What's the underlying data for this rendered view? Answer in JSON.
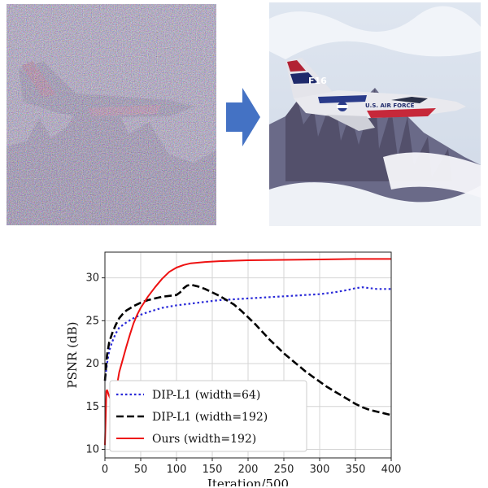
{
  "figure": {
    "left_image": {
      "name": "noisy-input-photo",
      "subject": "jet plane over snowy mountains"
    },
    "right_image": {
      "name": "restored-output-photo",
      "subject": "jet plane over snowy mountains"
    },
    "tail_text": "F16",
    "fuselage_text": "U.S. AIR FORCE",
    "arrow_color": "#4472c4"
  },
  "chart_data": {
    "type": "line",
    "xlabel": "Iteration/500",
    "ylabel": "PSNR (dB)",
    "xlim": [
      0,
      400
    ],
    "ylim": [
      9,
      33
    ],
    "xticks": [
      0,
      50,
      100,
      150,
      200,
      250,
      300,
      350,
      400
    ],
    "yticks": [
      10,
      15,
      20,
      25,
      30
    ],
    "grid": true,
    "legend_position": "lower-left",
    "series": [
      {
        "name": "DIP-L1 (width=64)",
        "color": "#2a2ad8",
        "style": "dotted",
        "x": [
          0,
          3,
          6,
          10,
          15,
          20,
          30,
          40,
          50,
          60,
          80,
          100,
          120,
          140,
          160,
          180,
          200,
          220,
          240,
          260,
          280,
          300,
          320,
          340,
          350,
          360,
          370,
          380,
          390,
          400
        ],
        "y": [
          18,
          20,
          21.5,
          22.5,
          23.5,
          24.2,
          24.8,
          25.3,
          25.7,
          26.0,
          26.5,
          26.8,
          27.0,
          27.2,
          27.4,
          27.5,
          27.6,
          27.7,
          27.8,
          27.9,
          28.0,
          28.1,
          28.3,
          28.6,
          28.8,
          28.9,
          28.8,
          28.7,
          28.7,
          28.7
        ]
      },
      {
        "name": "DIP-L1 (width=192)",
        "color": "#000000",
        "style": "dashed",
        "x": [
          0,
          3,
          6,
          10,
          15,
          20,
          25,
          30,
          40,
          50,
          60,
          70,
          80,
          90,
          100,
          105,
          110,
          115,
          120,
          130,
          140,
          150,
          160,
          170,
          180,
          190,
          200,
          210,
          220,
          230,
          240,
          250,
          260,
          270,
          280,
          290,
          300,
          310,
          320,
          330,
          340,
          350,
          360,
          370,
          380,
          390,
          400
        ],
        "y": [
          18,
          21,
          22.5,
          23.5,
          24.5,
          25.3,
          25.8,
          26.2,
          26.7,
          27.1,
          27.4,
          27.6,
          27.8,
          27.9,
          28.0,
          28.3,
          28.8,
          29.1,
          29.2,
          29.0,
          28.7,
          28.3,
          27.9,
          27.4,
          26.9,
          26.2,
          25.4,
          24.6,
          23.7,
          22.8,
          22.0,
          21.2,
          20.5,
          19.8,
          19.1,
          18.5,
          17.9,
          17.3,
          16.8,
          16.3,
          15.8,
          15.3,
          14.9,
          14.6,
          14.4,
          14.2,
          14.0
        ]
      },
      {
        "name": "Ours (width=192)",
        "color": "#ee1111",
        "style": "solid",
        "x": [
          0,
          1,
          2,
          3,
          4,
          5,
          6,
          8,
          10,
          12,
          14,
          16,
          18,
          20,
          25,
          30,
          35,
          40,
          45,
          50,
          60,
          70,
          80,
          90,
          100,
          110,
          120,
          140,
          160,
          200,
          250,
          300,
          350,
          400
        ],
        "y": [
          10.5,
          13.5,
          16.8,
          16.9,
          16.7,
          16.4,
          16.2,
          15.8,
          15.5,
          15.5,
          16.0,
          17.0,
          18.0,
          19.0,
          20.5,
          22.0,
          23.4,
          24.7,
          25.7,
          26.5,
          27.8,
          28.9,
          29.9,
          30.7,
          31.2,
          31.5,
          31.7,
          31.85,
          31.95,
          32.05,
          32.1,
          32.15,
          32.2,
          32.2
        ]
      }
    ]
  }
}
